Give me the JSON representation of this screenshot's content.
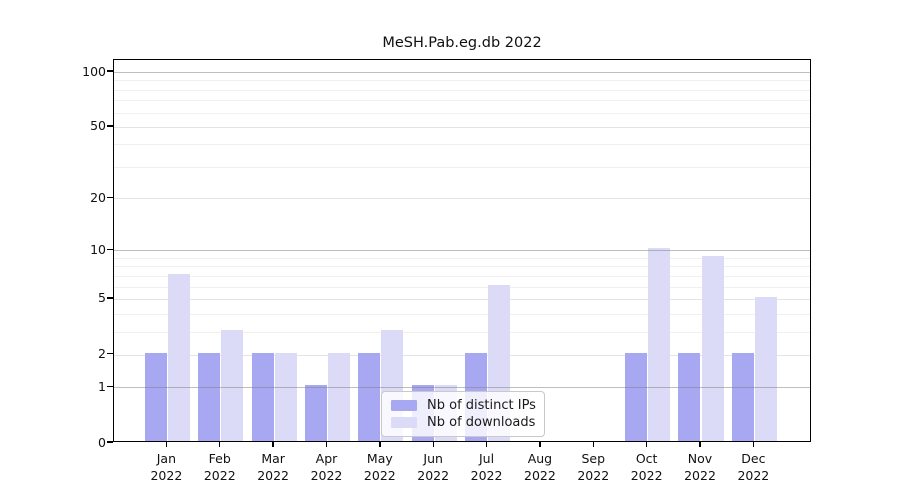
{
  "chart_data": {
    "type": "bar",
    "title": "MeSH.Pab.eg.db 2022",
    "categories": [
      "Jan 2022",
      "Feb 2022",
      "Mar 2022",
      "Apr 2022",
      "May 2022",
      "Jun 2022",
      "Jul 2022",
      "Aug 2022",
      "Sep 2022",
      "Oct 2022",
      "Nov 2022",
      "Dec 2022"
    ],
    "series": [
      {
        "name": "Nb of distinct IPs",
        "color": "#a8a8f2",
        "values": [
          2,
          2,
          2,
          1,
          2,
          1,
          2,
          0,
          0,
          2,
          2,
          2
        ]
      },
      {
        "name": "Nb of downloads",
        "color": "#dbdbf7",
        "values": [
          7,
          3,
          2,
          2,
          3,
          1,
          6,
          0,
          0,
          10,
          9,
          5
        ]
      }
    ],
    "xlabel": "",
    "ylabel": "",
    "y_scale": "log10(1+x)",
    "y_ticks": [
      0,
      1,
      2,
      5,
      10,
      20,
      50,
      100
    ],
    "y_decade_gridlines": [
      1,
      10,
      100
    ],
    "y_minor_gridlines": [
      3,
      4,
      6,
      7,
      8,
      9,
      30,
      40,
      60,
      70,
      80,
      90
    ],
    "ylim": [
      0,
      115
    ],
    "grid": "horizontal",
    "legend_position": "lower-center"
  }
}
